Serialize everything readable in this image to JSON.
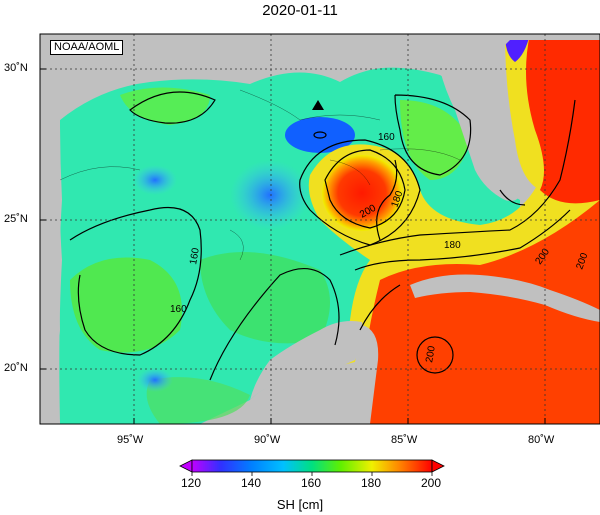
{
  "title": "2020-01-11",
  "credit": "NOAA/AOML",
  "map": {
    "variable": "SH",
    "units_label": "SH [cm]",
    "lat_labels": [
      "30˚N",
      "25˚N",
      "20˚N"
    ],
    "lon_labels": [
      "95˚W",
      "90˚W",
      "85˚W",
      "80˚W"
    ],
    "contour_labels": [
      "160",
      "160",
      "160",
      "180",
      "180",
      "200",
      "200",
      "200",
      "200"
    ],
    "marker": "triangle",
    "land_color": "#c0c0c0"
  },
  "colorbar": {
    "min": 120,
    "max": 200,
    "ticks": [
      "120",
      "140",
      "160",
      "180",
      "200"
    ],
    "colors": [
      "#c000ff",
      "#2020ff",
      "#00b0ff",
      "#00e0c0",
      "#00e060",
      "#80f000",
      "#f0f000",
      "#ffa000",
      "#ff3000",
      "#ff0000"
    ]
  }
}
